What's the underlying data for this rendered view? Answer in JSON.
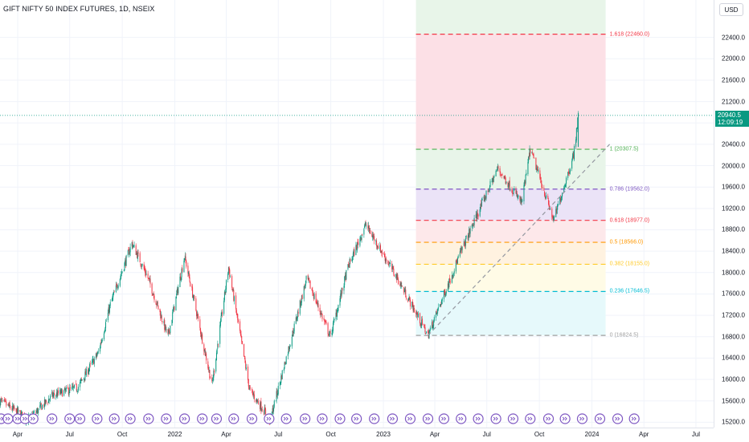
{
  "header": {
    "title": "GIFT NIFTY 50 INDEX FUTURES, 1D, NSEIX",
    "currency": "USD"
  },
  "last_price": {
    "value": "20940.5",
    "countdown": "12:09:19",
    "color": "#089981"
  },
  "colors": {
    "up": "#089981",
    "down": "#f23645",
    "event_icon": "#7e57c2"
  },
  "chart_data": {
    "type": "candlestick",
    "price_ticks": [
      22400,
      22000,
      21600,
      21200,
      20800,
      20400,
      20000,
      19600,
      19200,
      18800,
      18400,
      18000,
      17600,
      17200,
      16800,
      16400,
      16000,
      15600,
      15200
    ],
    "price_tick_labels": [
      "22400.0",
      "22000.0",
      "21600.0",
      "21200.0",
      "20800.0",
      "20400.0",
      "20000.0",
      "19600.0",
      "19200.0",
      "18800.0",
      "18400.0",
      "18000.0",
      "17600.0",
      "17200.0",
      "16800.0",
      "16400.0",
      "16000.0",
      "15600.0",
      "15200.0"
    ],
    "time_ticks": [
      "Apr",
      "Jul",
      "Oct",
      "2022",
      "Apr",
      "Jul",
      "Oct",
      "2023",
      "Apr",
      "Jul",
      "Oct",
      "2024",
      "Apr",
      "Jul"
    ],
    "ylim": [
      15100,
      23100
    ],
    "approx_path": [
      {
        "date": "2021-03-01",
        "price": 15600
      },
      {
        "date": "2021-04-20",
        "price": 15250
      },
      {
        "date": "2021-06-01",
        "price": 15700
      },
      {
        "date": "2021-07-15",
        "price": 15850
      },
      {
        "date": "2021-08-20",
        "price": 16500
      },
      {
        "date": "2021-09-10",
        "price": 17400
      },
      {
        "date": "2021-10-18",
        "price": 18550
      },
      {
        "date": "2021-11-15",
        "price": 17900
      },
      {
        "date": "2021-12-20",
        "price": 16800
      },
      {
        "date": "2022-01-18",
        "price": 18300
      },
      {
        "date": "2022-02-25",
        "price": 16400
      },
      {
        "date": "2022-03-07",
        "price": 15900
      },
      {
        "date": "2022-04-05",
        "price": 18100
      },
      {
        "date": "2022-05-12",
        "price": 15800
      },
      {
        "date": "2022-06-17",
        "price": 15250
      },
      {
        "date": "2022-08-20",
        "price": 17900
      },
      {
        "date": "2022-09-30",
        "price": 16800
      },
      {
        "date": "2022-10-31",
        "price": 18100
      },
      {
        "date": "2022-12-01",
        "price": 18900
      },
      {
        "date": "2023-01-25",
        "price": 17900
      },
      {
        "date": "2023-03-20",
        "price": 16824.5
      },
      {
        "date": "2023-05-15",
        "price": 18350
      },
      {
        "date": "2023-07-20",
        "price": 19950
      },
      {
        "date": "2023-08-31",
        "price": 19300
      },
      {
        "date": "2023-09-15",
        "price": 20307.5
      },
      {
        "date": "2023-10-26",
        "price": 18977
      },
      {
        "date": "2023-11-30",
        "price": 20200
      },
      {
        "date": "2023-12-08",
        "price": 20940.5
      }
    ],
    "fib_levels": [
      {
        "label": "1.618 (22460.0)",
        "ratio": 1.618,
        "value": 22460.0,
        "color": "#f23645",
        "fill": "#fce0e6"
      },
      {
        "label": "1 (20307.5)",
        "ratio": 1,
        "value": 20307.5,
        "color": "#4caf50",
        "fill": "#e8f5e9"
      },
      {
        "label": "0.786 (19562.0)",
        "ratio": 0.786,
        "value": 19562.0,
        "color": "#7e57c2",
        "fill": "#ebe3f7"
      },
      {
        "label": "0.618 (18977.0)",
        "ratio": 0.618,
        "value": 18977.0,
        "color": "#f23645",
        "fill": "#fde8ea"
      },
      {
        "label": "0.5 (18566.0)",
        "ratio": 0.5,
        "value": 18566.0,
        "color": "#ff9800",
        "fill": "#fff2e0"
      },
      {
        "label": "0.382 (18155.0)",
        "ratio": 0.382,
        "value": 18155.0,
        "color": "#ffca28",
        "fill": "#fffbe6"
      },
      {
        "label": "0.236 (17646.5)",
        "ratio": 0.236,
        "value": 17646.5,
        "color": "#00bcd4",
        "fill": "#e6f9fb"
      },
      {
        "label": "0 (16824.5)",
        "ratio": 0,
        "value": 16824.5,
        "color": "#9e9e9e",
        "fill": "#ffffff"
      }
    ],
    "trendline": {
      "from": {
        "date": "2023-03-20",
        "price": 16824.5
      },
      "to": {
        "date": "2024-02-01",
        "price": 20400
      }
    },
    "grid": true
  }
}
